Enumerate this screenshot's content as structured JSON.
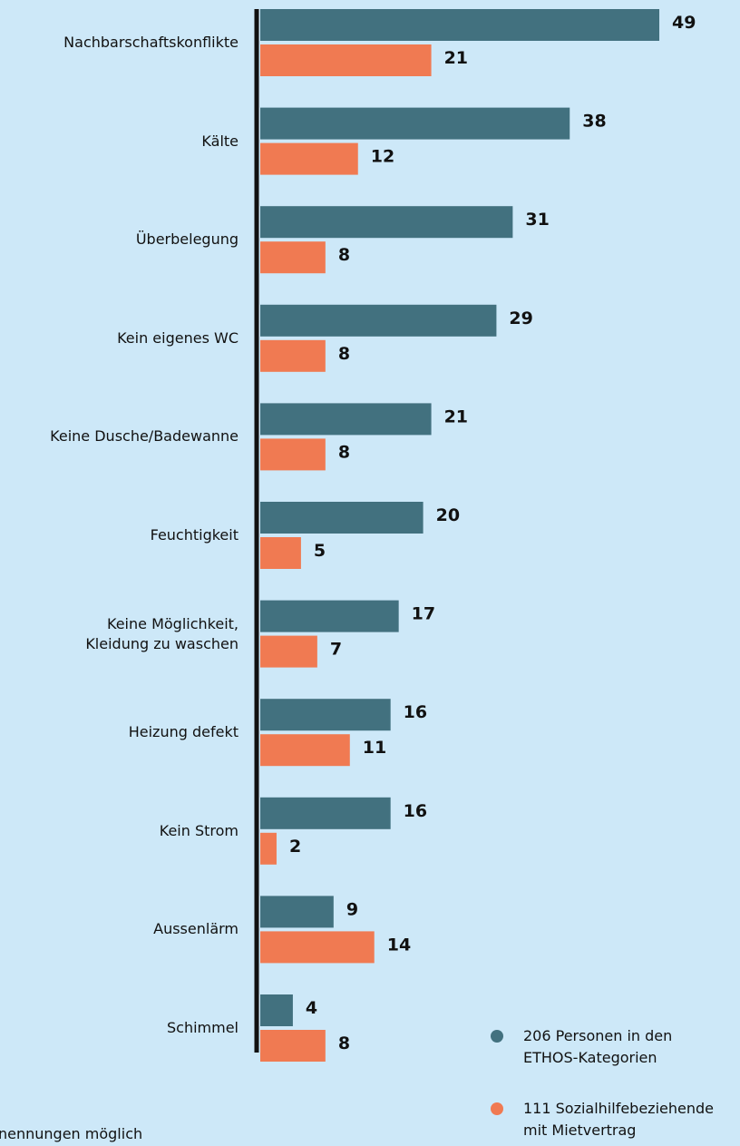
{
  "chart_data": {
    "type": "hbar",
    "categories": [
      "Nachbarschaftskonflikte",
      "Kälte",
      "Überbelegung",
      "Kein eigenes WC",
      "Keine Dusche/Badewanne",
      "Feuchtigkeit",
      "Keine Möglichkeit,\nKleidung zu waschen",
      "Heizung defekt",
      "Kein Strom",
      "Aussenlärm",
      "Schimmel"
    ],
    "series": [
      {
        "name": "206 Personen in den\nETHOS-Kategorien",
        "color": "#42717f",
        "values": [
          49,
          38,
          31,
          29,
          21,
          20,
          17,
          16,
          16,
          9,
          4
        ]
      },
      {
        "name": "111 Sozialhilfebeziehende\nmit Mietvertrag",
        "color": "#f07a52",
        "values": [
          21,
          12,
          8,
          8,
          8,
          5,
          7,
          11,
          2,
          14,
          8
        ]
      }
    ],
    "xlim": [
      0,
      50
    ],
    "note": "nennungen möglich"
  }
}
